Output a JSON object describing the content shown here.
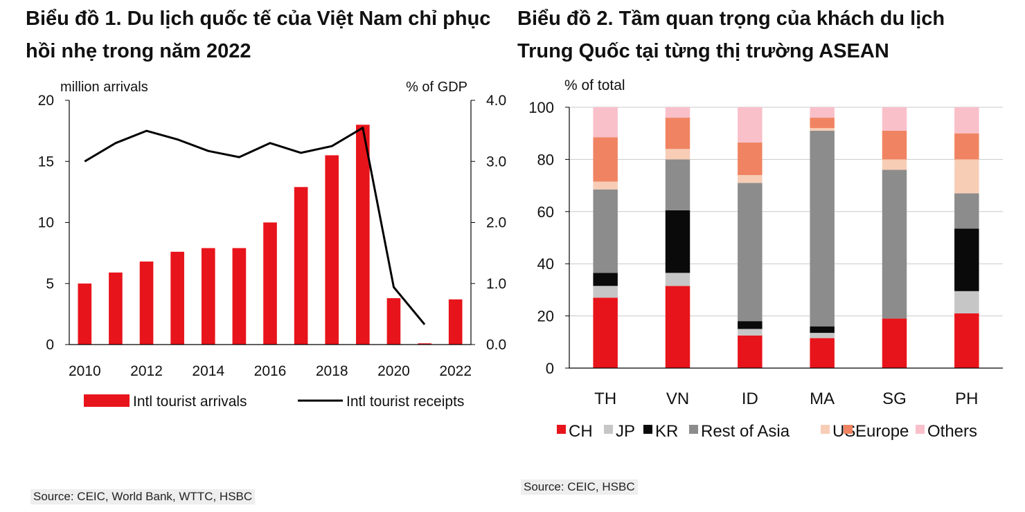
{
  "chart_data": [
    {
      "type": "bar",
      "title_line1": "Biểu đồ 1. Du lịch quốc tế của Việt Nam chỉ phục",
      "title_line2": "hồi nhẹ trong năm 2022",
      "ylabel_left": "million  arrivals",
      "ylabel_right": "% of GDP",
      "ylim_left": [
        0,
        20
      ],
      "ylim_right": [
        0,
        4
      ],
      "yticks_left": [
        "0",
        "5",
        "10",
        "15",
        "20"
      ],
      "yticks_right": [
        "0.0",
        "1.0",
        "2.0",
        "3.0",
        "4.0"
      ],
      "x": [
        2010,
        2011,
        2012,
        2013,
        2014,
        2015,
        2016,
        2017,
        2018,
        2019,
        2020,
        2021,
        2022
      ],
      "xtick_labels": [
        "2010",
        "2012",
        "2014",
        "2016",
        "2018",
        "2020",
        "2022"
      ],
      "series": [
        {
          "name": "Intl tourist arrivals",
          "kind": "bar",
          "axis": "left",
          "color": "#e8141b",
          "values": [
            5.0,
            5.9,
            6.8,
            7.6,
            7.9,
            7.9,
            10.0,
            12.9,
            15.5,
            18.0,
            3.8,
            0.1,
            3.7
          ]
        },
        {
          "name": "Intl tourist receipts",
          "kind": "line",
          "axis": "right",
          "color": "#000000",
          "values": [
            3.0,
            3.3,
            3.5,
            3.36,
            3.17,
            3.07,
            3.3,
            3.14,
            3.25,
            3.55,
            0.94,
            0.33,
            null
          ]
        }
      ],
      "source": "Source: CEIC, World Bank, WTTC, HSBC"
    },
    {
      "type": "bar",
      "stacked": true,
      "title_line1": "Biểu đồ 2. Tầm quan trọng của khách du lịch",
      "title_line2": "Trung Quốc tại từng thị trường ASEAN",
      "ylabel": "% of total",
      "ylim": [
        0,
        100
      ],
      "yticks": [
        "0",
        "20",
        "40",
        "60",
        "80",
        "100"
      ],
      "categories": [
        "TH",
        "VN",
        "ID",
        "MA",
        "SG",
        "PH"
      ],
      "series": [
        {
          "name": "CH",
          "color": "#e8141b",
          "values": [
            27,
            31.5,
            12.5,
            11.5,
            19,
            21
          ]
        },
        {
          "name": "JP",
          "color": "#c6c6c6",
          "values": [
            4.5,
            5,
            2.5,
            2,
            0,
            8.5
          ]
        },
        {
          "name": "KR",
          "color": "#0a0a0a",
          "values": [
            5,
            24,
            3,
            2.5,
            0,
            24
          ]
        },
        {
          "name": "Rest of Asia",
          "color": "#8c8c8c",
          "values": [
            32,
            19.5,
            53,
            75,
            57,
            13.5
          ]
        },
        {
          "name": "US",
          "color": "#f7cdb6",
          "values": [
            3,
            4,
            3,
            1,
            4,
            13
          ]
        },
        {
          "name": "Europe",
          "color": "#f08462",
          "values": [
            17,
            12,
            12.5,
            4,
            11,
            10
          ]
        },
        {
          "name": "Others",
          "color": "#f9c0ca",
          "values": [
            11.5,
            4,
            13.5,
            4,
            9,
            10
          ]
        }
      ],
      "source": "Source:  CEIC, HSBC"
    }
  ]
}
